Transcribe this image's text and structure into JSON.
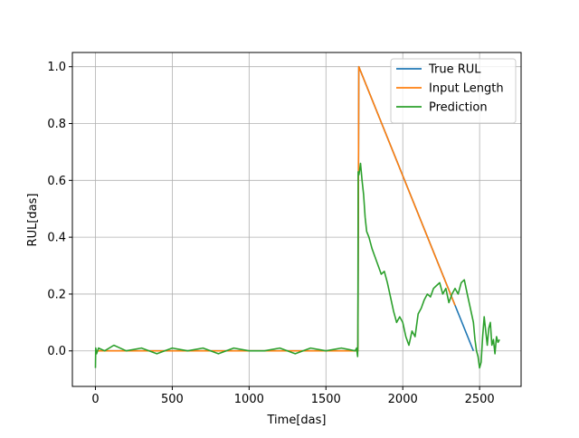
{
  "chart_data": {
    "type": "line",
    "title": "",
    "xlabel": "Time[das]",
    "ylabel": "RUL[das]",
    "xlim": [
      -150,
      2770
    ],
    "ylim": [
      -0.125,
      1.05
    ],
    "x_ticks": [
      0,
      500,
      1000,
      1500,
      2000,
      2500
    ],
    "y_ticks": [
      0.0,
      0.2,
      0.4,
      0.6,
      0.8,
      1.0
    ],
    "x_tick_labels": [
      "0",
      "500",
      "1000",
      "1500",
      "2000",
      "2500"
    ],
    "y_tick_labels": [
      "0.0",
      "0.2",
      "0.4",
      "0.6",
      "0.8",
      "1.0"
    ],
    "grid": true,
    "legend_position": "top-right",
    "series": [
      {
        "name": "True RUL",
        "color": "#1f77b4",
        "x": [
          0,
          1708,
          1708,
          1714,
          2460
        ],
        "y": [
          0,
          0,
          0,
          1.0,
          0
        ]
      },
      {
        "name": "Input Length",
        "color": "#ff7f0e",
        "x": [
          0,
          1708,
          1708,
          1714,
          2340
        ],
        "y": [
          0,
          0,
          0,
          1.0,
          0.16
        ]
      },
      {
        "name": "Prediction",
        "color": "#2ca02c",
        "x": [
          0,
          2,
          8,
          20,
          60,
          120,
          200,
          300,
          400,
          500,
          600,
          700,
          800,
          900,
          1000,
          1100,
          1200,
          1300,
          1400,
          1500,
          1600,
          1690,
          1700,
          1706,
          1708,
          1710,
          1715,
          1725,
          1735,
          1745,
          1755,
          1765,
          1780,
          1800,
          1820,
          1840,
          1860,
          1880,
          1900,
          1920,
          1940,
          1960,
          1980,
          2000,
          2020,
          2040,
          2060,
          2080,
          2100,
          2120,
          2140,
          2160,
          2180,
          2200,
          2220,
          2240,
          2260,
          2280,
          2300,
          2320,
          2340,
          2360,
          2380,
          2400,
          2420,
          2440,
          2460,
          2470,
          2480,
          2490,
          2500,
          2510,
          2520,
          2530,
          2540,
          2550,
          2560,
          2570,
          2580,
          2590,
          2600,
          2610,
          2620,
          2630
        ],
        "y": [
          -0.06,
          0.01,
          -0.01,
          0.01,
          0.0,
          0.02,
          0.0,
          0.01,
          -0.01,
          0.01,
          0.0,
          0.01,
          -0.01,
          0.01,
          0.0,
          0.0,
          0.01,
          -0.01,
          0.01,
          0.0,
          0.01,
          0.0,
          0.01,
          -0.02,
          0.03,
          0.63,
          0.62,
          0.66,
          0.6,
          0.55,
          0.47,
          0.42,
          0.4,
          0.36,
          0.33,
          0.3,
          0.27,
          0.28,
          0.24,
          0.19,
          0.14,
          0.1,
          0.12,
          0.1,
          0.05,
          0.02,
          0.07,
          0.05,
          0.13,
          0.15,
          0.18,
          0.2,
          0.19,
          0.22,
          0.23,
          0.24,
          0.2,
          0.22,
          0.17,
          0.2,
          0.22,
          0.2,
          0.24,
          0.25,
          0.2,
          0.15,
          0.1,
          0.04,
          0.0,
          -0.02,
          -0.06,
          -0.04,
          0.05,
          0.12,
          0.07,
          0.02,
          0.08,
          0.1,
          0.02,
          0.04,
          -0.01,
          0.05,
          0.03,
          0.04
        ]
      }
    ]
  }
}
